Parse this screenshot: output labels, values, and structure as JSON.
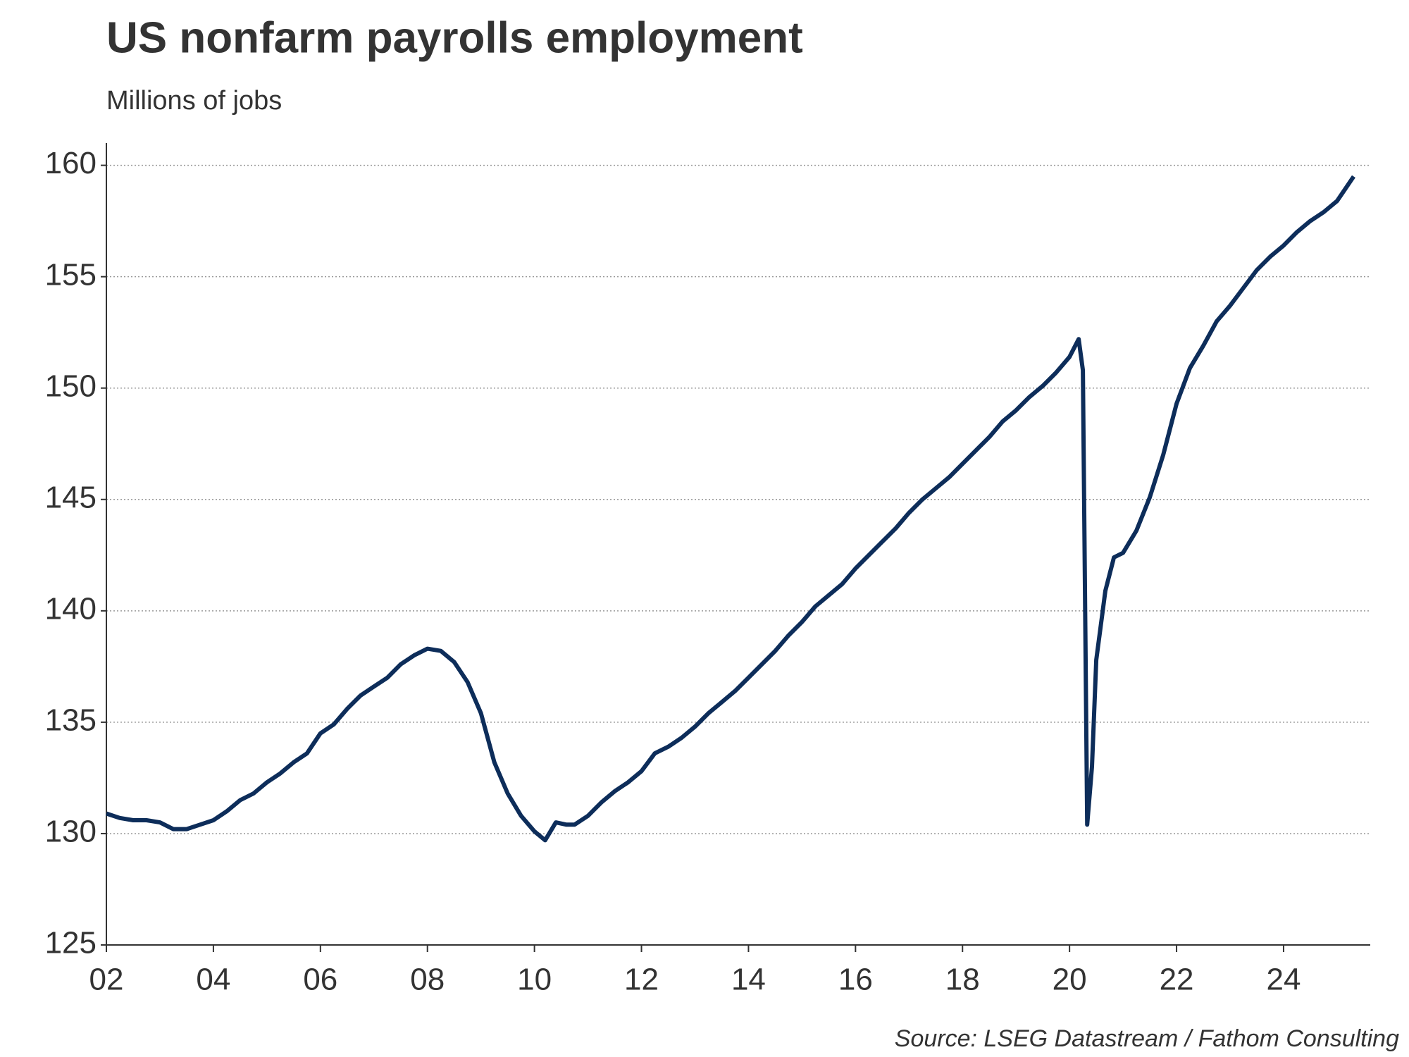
{
  "chart_data": {
    "type": "line",
    "title": "US nonfarm payrolls employment",
    "subtitle": "Millions of jobs",
    "source": "Source: LSEG Datastream / Fathom Consulting",
    "x": [
      2002.0,
      2002.25,
      2002.5,
      2002.75,
      2003.0,
      2003.25,
      2003.5,
      2003.75,
      2004.0,
      2004.25,
      2004.5,
      2004.75,
      2005.0,
      2005.25,
      2005.5,
      2005.75,
      2006.0,
      2006.25,
      2006.5,
      2006.75,
      2007.0,
      2007.25,
      2007.5,
      2007.75,
      2008.0,
      2008.25,
      2008.5,
      2008.75,
      2009.0,
      2009.25,
      2009.5,
      2009.75,
      2010.0,
      2010.2,
      2010.4,
      2010.6,
      2010.75,
      2011.0,
      2011.25,
      2011.5,
      2011.75,
      2012.0,
      2012.25,
      2012.5,
      2012.75,
      2013.0,
      2013.25,
      2013.5,
      2013.75,
      2014.0,
      2014.25,
      2014.5,
      2014.75,
      2015.0,
      2015.25,
      2015.5,
      2015.75,
      2016.0,
      2016.25,
      2016.5,
      2016.75,
      2017.0,
      2017.25,
      2017.5,
      2017.75,
      2018.0,
      2018.25,
      2018.5,
      2018.75,
      2019.0,
      2019.25,
      2019.5,
      2019.75,
      2020.0,
      2020.17,
      2020.25,
      2020.33,
      2020.42,
      2020.5,
      2020.67,
      2020.83,
      2021.0,
      2021.25,
      2021.5,
      2021.75,
      2022.0,
      2022.25,
      2022.5,
      2022.75,
      2023.0,
      2023.25,
      2023.5,
      2023.75,
      2024.0,
      2024.25,
      2024.5,
      2024.75,
      2025.0,
      2025.31
    ],
    "series": [
      {
        "name": "US nonfarm payrolls employment",
        "color": "#0d2d5a",
        "values": [
          130.9,
          130.7,
          130.6,
          130.6,
          130.5,
          130.2,
          130.2,
          130.4,
          130.6,
          131.0,
          131.5,
          131.8,
          132.3,
          132.7,
          133.2,
          133.6,
          134.5,
          134.9,
          135.6,
          136.2,
          136.6,
          137.0,
          137.6,
          138.0,
          138.3,
          138.2,
          137.7,
          136.8,
          135.4,
          133.2,
          131.8,
          130.8,
          130.1,
          129.7,
          130.5,
          130.4,
          130.4,
          130.8,
          131.4,
          131.9,
          132.3,
          132.8,
          133.6,
          133.9,
          134.3,
          134.8,
          135.4,
          135.9,
          136.4,
          137.0,
          137.6,
          138.2,
          138.9,
          139.5,
          140.2,
          140.7,
          141.2,
          141.9,
          142.5,
          143.1,
          143.7,
          144.4,
          145.0,
          145.5,
          146.0,
          146.6,
          147.2,
          147.8,
          148.5,
          149.0,
          149.6,
          150.1,
          150.7,
          151.4,
          152.2,
          150.8,
          130.4,
          133.0,
          137.8,
          140.9,
          142.4,
          142.6,
          143.6,
          145.1,
          147.0,
          149.3,
          150.9,
          151.9,
          153.0,
          153.7,
          154.5,
          155.3,
          155.9,
          156.4,
          157.0,
          157.5,
          157.9,
          158.4,
          159.5
        ]
      }
    ],
    "xlim": [
      2002,
      2025.62
    ],
    "xticks": [
      {
        "value": 2002,
        "label": "02"
      },
      {
        "value": 2004,
        "label": "04"
      },
      {
        "value": 2006,
        "label": "06"
      },
      {
        "value": 2008,
        "label": "08"
      },
      {
        "value": 2010,
        "label": "10"
      },
      {
        "value": 2012,
        "label": "12"
      },
      {
        "value": 2014,
        "label": "14"
      },
      {
        "value": 2016,
        "label": "16"
      },
      {
        "value": 2018,
        "label": "18"
      },
      {
        "value": 2020,
        "label": "20"
      },
      {
        "value": 2022,
        "label": "22"
      },
      {
        "value": 2024,
        "label": "24"
      }
    ],
    "ylim": [
      125,
      161
    ],
    "yticks": [
      125,
      130,
      135,
      140,
      145,
      150,
      155,
      160
    ],
    "grid": true
  }
}
